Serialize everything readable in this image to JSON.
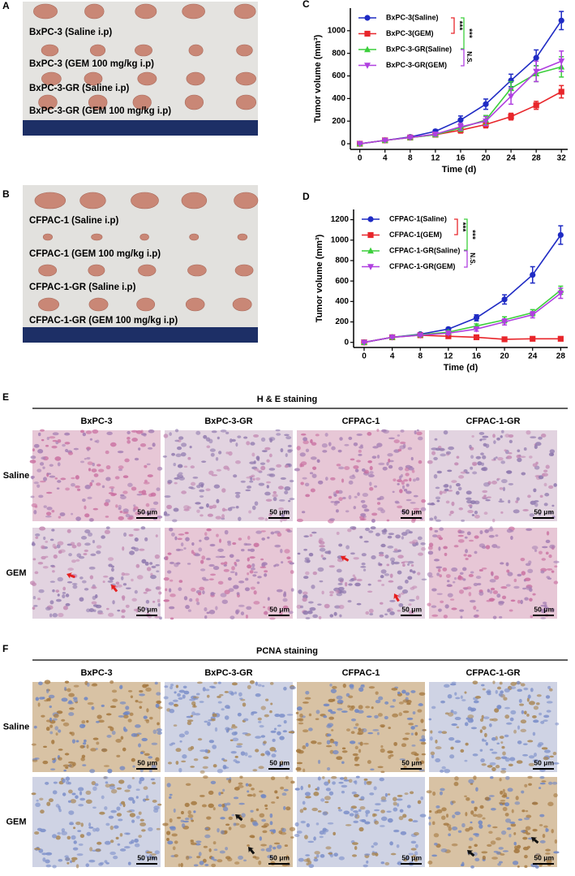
{
  "panel_labels": [
    "A",
    "B",
    "C",
    "D",
    "E",
    "F"
  ],
  "photos": [
    {
      "labels": [
        "BxPC-3 (Saline i.p)",
        "BxPC-3 (GEM 100 mg/kg i.p)",
        "BxPC-3-GR (Saline i.p)",
        "BxPC-3-GR (GEM 100 mg/kg i.p)"
      ]
    },
    {
      "labels": [
        "CFPAC-1 (Saline i.p)",
        "CFPAC-1 (GEM 100 mg/kg i.p)",
        "CFPAC-1-GR (Saline i.p)",
        "CFPAC-1-GR (GEM 100 mg/kg i.p)"
      ]
    }
  ],
  "chart_data": [
    {
      "type": "line",
      "xlabel": "Time (d)",
      "ylabel": "Tumor volume (mm³)",
      "x": [
        0,
        4,
        8,
        12,
        16,
        20,
        24,
        28,
        32
      ],
      "xlim": [
        -1.5,
        33
      ],
      "xticks": [
        0,
        4,
        8,
        12,
        16,
        20,
        24,
        28,
        32
      ],
      "ylim": [
        -50,
        1200
      ],
      "yticks": [
        0,
        200,
        400,
        600,
        800,
        1000
      ],
      "series": [
        {
          "name": "BxPC-3(Saline)",
          "color": "#1f2bc4",
          "marker": "circle",
          "values": [
            0,
            30,
            60,
            110,
            210,
            350,
            560,
            760,
            1090
          ],
          "errors": [
            5,
            8,
            10,
            15,
            35,
            45,
            55,
            70,
            80
          ]
        },
        {
          "name": "BxPC-3(GEM)",
          "color": "#e8262b",
          "marker": "square",
          "values": [
            0,
            30,
            55,
            80,
            120,
            170,
            240,
            340,
            460
          ],
          "errors": [
            5,
            8,
            10,
            15,
            25,
            30,
            30,
            35,
            55
          ]
        },
        {
          "name": "BxPC-3-GR(Saline)",
          "color": "#3ccf3c",
          "marker": "triangle-up",
          "values": [
            0,
            30,
            55,
            80,
            140,
            210,
            490,
            620,
            680
          ],
          "errors": [
            5,
            8,
            10,
            15,
            30,
            40,
            60,
            70,
            90
          ]
        },
        {
          "name": "BxPC-3-GR(GEM)",
          "color": "#b040e0",
          "marker": "triangle-down",
          "values": [
            0,
            30,
            55,
            85,
            150,
            200,
            420,
            640,
            730
          ],
          "errors": [
            5,
            8,
            10,
            15,
            30,
            40,
            70,
            90,
            90
          ]
        }
      ],
      "annotations": [
        {
          "text": "***",
          "color": "#e8262b"
        },
        {
          "text": "***",
          "color": "#3ccf3c"
        },
        {
          "text": "N.S.",
          "color": "#b040e0"
        }
      ]
    },
    {
      "type": "line",
      "xlabel": "Time (d)",
      "ylabel": "Tumor volume (mm³)",
      "x": [
        0,
        4,
        8,
        12,
        16,
        20,
        24,
        28
      ],
      "xlim": [
        -1.5,
        29
      ],
      "xticks": [
        0,
        4,
        8,
        12,
        16,
        20,
        24,
        28
      ],
      "ylim": [
        -50,
        1300
      ],
      "yticks": [
        0,
        200,
        400,
        600,
        800,
        1000,
        1200
      ],
      "series": [
        {
          "name": "CFPAC-1(Saline)",
          "color": "#1f2bc4",
          "marker": "circle",
          "values": [
            0,
            50,
            80,
            130,
            240,
            420,
            660,
            1050
          ],
          "errors": [
            5,
            8,
            10,
            15,
            30,
            45,
            80,
            90
          ]
        },
        {
          "name": "CFPAC-1(GEM)",
          "color": "#e8262b",
          "marker": "square",
          "values": [
            0,
            50,
            70,
            60,
            50,
            30,
            35,
            35
          ],
          "errors": [
            5,
            8,
            10,
            10,
            10,
            5,
            5,
            5
          ]
        },
        {
          "name": "CFPAC-1-GR(Saline)",
          "color": "#3ccf3c",
          "marker": "triangle-up",
          "values": [
            0,
            50,
            75,
            100,
            160,
            220,
            290,
            510
          ],
          "errors": [
            5,
            8,
            10,
            15,
            20,
            30,
            30,
            40
          ]
        },
        {
          "name": "CFPAC-1-GR(GEM)",
          "color": "#b040e0",
          "marker": "triangle-down",
          "values": [
            0,
            50,
            70,
            90,
            130,
            200,
            270,
            480
          ],
          "errors": [
            5,
            8,
            10,
            15,
            20,
            30,
            30,
            50
          ]
        }
      ],
      "annotations": [
        {
          "text": "***",
          "color": "#e8262b"
        },
        {
          "text": "***",
          "color": "#3ccf3c"
        },
        {
          "text": "N.S.",
          "color": "#b040e0"
        }
      ]
    }
  ],
  "staining": [
    {
      "title": "H & E staining",
      "columns": [
        "BxPC-3",
        "BxPC-3-GR",
        "CFPAC-1",
        "CFPAC-1-GR"
      ],
      "rows": [
        "Saline",
        "GEM"
      ]
    },
    {
      "title": "PCNA staining",
      "columns": [
        "BxPC-3",
        "BxPC-3-GR",
        "CFPAC-1",
        "CFPAC-1-GR"
      ],
      "rows": [
        "Saline",
        "GEM"
      ]
    }
  ],
  "scale_bar": "50 μm"
}
